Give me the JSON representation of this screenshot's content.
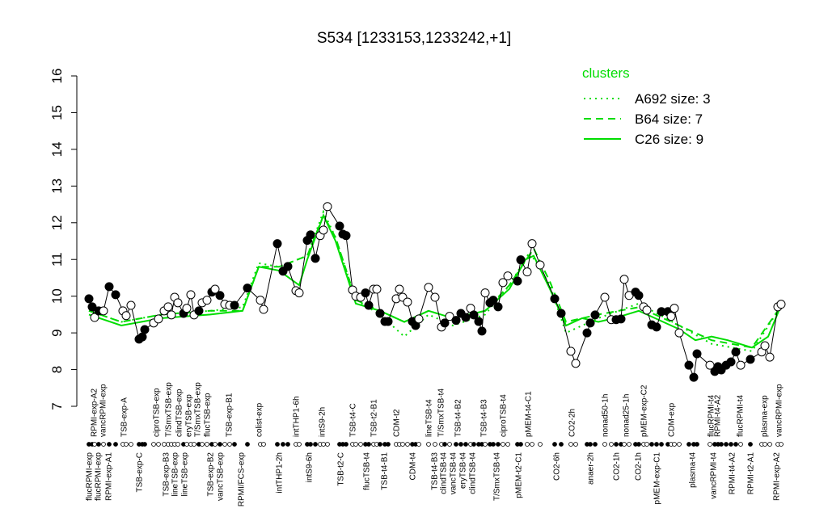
{
  "chart_data": {
    "type": "line",
    "title": "S534 [1233153,1233242,+1]",
    "ylim": [
      7,
      16
    ],
    "yticks": [
      7,
      8,
      9,
      10,
      11,
      12,
      13,
      14,
      15,
      16
    ],
    "xlim": [
      100,
      975
    ],
    "legend_title": "clusters",
    "legend_position": "top-right",
    "series": [
      {
        "color": "#000000",
        "x": [
          110,
          114,
          117,
          122,
          128,
          135,
          143,
          152,
          156,
          162,
          172,
          176,
          179,
          190,
          196,
          203,
          208,
          212,
          216,
          220,
          227,
          231,
          236,
          240,
          246,
          250,
          256,
          262,
          266,
          272,
          278,
          284,
          290,
          306,
          322,
          326,
          343,
          350,
          356,
          366,
          370,
          380,
          384,
          390,
          396,
          400,
          405,
          420,
          424,
          428,
          436,
          440,
          446,
          452,
          456,
          462,
          466,
          470,
          476,
          480,
          490,
          494,
          498,
          504,
          510,
          514,
          518,
          530,
          538,
          546,
          550,
          556,
          564,
          570,
          576,
          582,
          586,
          592,
          596,
          600,
          606,
          610,
          616,
          622,
          628,
          640,
          644,
          652,
          658,
          668,
          686,
          694,
          706,
          712,
          726,
          730,
          736,
          748,
          756,
          762,
          768,
          772,
          778,
          786,
          790,
          796,
          800,
          806,
          812,
          818,
          826,
          830,
          834,
          840,
          852,
          858,
          862,
          878,
          884,
          888,
          892,
          898,
          904,
          910,
          916,
          928,
          942,
          946,
          952,
          962,
          966
        ],
        "values": [
          9.93,
          9.71,
          9.42,
          9.6,
          9.6,
          10.26,
          10.04,
          9.6,
          9.47,
          9.75,
          8.83,
          8.89,
          9.09,
          9.27,
          9.38,
          9.6,
          9.71,
          9.49,
          9.97,
          9.82,
          9.53,
          9.67,
          10.04,
          9.49,
          9.6,
          9.82,
          9.89,
          10.11,
          10.19,
          10.02,
          9.78,
          9.75,
          9.75,
          10.22,
          9.89,
          9.64,
          11.43,
          10.68,
          10.81,
          10.15,
          10.09,
          11.52,
          11.67,
          11.03,
          11.65,
          11.8,
          12.44,
          11.91,
          11.69,
          11.65,
          10.17,
          10.0,
          9.97,
          10.09,
          9.75,
          10.19,
          10.19,
          9.53,
          9.31,
          9.31,
          9.93,
          10.19,
          9.97,
          9.84,
          9.31,
          9.2,
          9.38,
          10.24,
          9.97,
          9.16,
          9.27,
          9.45,
          9.34,
          9.53,
          9.42,
          9.67,
          9.49,
          9.31,
          9.05,
          10.09,
          9.82,
          9.89,
          9.71,
          10.37,
          10.55,
          10.41,
          10.99,
          10.66,
          11.43,
          10.85,
          9.93,
          9.53,
          8.5,
          8.17,
          9.0,
          9.27,
          9.49,
          9.97,
          9.36,
          9.36,
          9.38,
          10.46,
          10.02,
          10.11,
          10.02,
          9.71,
          9.62,
          9.22,
          9.16,
          9.58,
          9.58,
          9.45,
          9.67,
          9.0,
          8.12,
          7.79,
          8.43,
          8.12,
          7.95,
          8.08,
          7.99,
          8.12,
          8.21,
          8.48,
          8.12,
          8.28,
          8.48,
          8.65,
          8.34,
          9.71,
          9.78
        ],
        "filled": [
          true,
          true,
          false,
          true,
          false,
          true,
          true,
          false,
          false,
          false,
          true,
          true,
          true,
          false,
          false,
          false,
          false,
          false,
          false,
          false,
          true,
          false,
          false,
          false,
          true,
          false,
          false,
          true,
          false,
          true,
          false,
          false,
          true,
          true,
          false,
          false,
          true,
          true,
          true,
          false,
          false,
          true,
          true,
          true,
          false,
          false,
          false,
          true,
          true,
          true,
          false,
          false,
          false,
          true,
          true,
          false,
          false,
          true,
          true,
          true,
          false,
          false,
          false,
          false,
          true,
          true,
          false,
          false,
          false,
          false,
          true,
          false,
          true,
          true,
          true,
          false,
          true,
          true,
          true,
          false,
          true,
          true,
          true,
          false,
          false,
          true,
          true,
          false,
          false,
          false,
          true,
          true,
          false,
          false,
          true,
          true,
          true,
          false,
          false,
          true,
          true,
          false,
          false,
          true,
          true,
          false,
          false,
          true,
          true,
          true,
          true,
          false,
          false,
          false,
          true,
          true,
          true,
          false,
          true,
          true,
          true,
          true,
          true,
          true,
          false,
          true,
          false,
          false,
          false,
          false,
          false
        ]
      }
    ],
    "clusters": [
      {
        "name": "A692 size: 3",
        "color": "#00dd00",
        "dash": "dotted",
        "x": [
          110,
          150,
          200,
          260,
          300,
          320,
          345,
          380,
          400,
          415,
          440,
          470,
          500,
          530,
          560,
          600,
          630,
          655,
          680,
          700,
          740,
          790,
          840,
          880,
          930,
          965
        ],
        "values": [
          9.6,
          9.3,
          9.5,
          9.6,
          9.7,
          10.9,
          10.8,
          11.1,
          12.3,
          11.6,
          9.9,
          9.5,
          8.9,
          9.5,
          9.2,
          9.5,
          10.3,
          11.2,
          10.3,
          9.0,
          9.4,
          9.8,
          9.2,
          8.7,
          8.5,
          9.7
        ]
      },
      {
        "name": "B64 size: 7",
        "color": "#00dd00",
        "dash": "dashed",
        "x": [
          110,
          150,
          200,
          260,
          300,
          320,
          345,
          380,
          400,
          415,
          440,
          470,
          500,
          530,
          560,
          600,
          630,
          660,
          680,
          700,
          740,
          790,
          840,
          880,
          930,
          965
        ],
        "values": [
          9.6,
          9.3,
          9.5,
          9.6,
          9.6,
          10.8,
          10.8,
          11.1,
          12.2,
          11.6,
          9.9,
          9.6,
          9.3,
          9.6,
          9.4,
          9.6,
          10.3,
          11.3,
          10.4,
          9.3,
          9.5,
          9.7,
          9.2,
          8.8,
          8.6,
          9.7
        ]
      },
      {
        "name": "C26 size: 9",
        "color": "#00dd00",
        "dash": "solid",
        "x": [
          110,
          150,
          200,
          260,
          300,
          320,
          345,
          370,
          380,
          400,
          415,
          440,
          470,
          500,
          530,
          560,
          600,
          630,
          650,
          660,
          680,
          700,
          720,
          740,
          760,
          790,
          810,
          840,
          860,
          880,
          900,
          930,
          950,
          965
        ],
        "values": [
          9.5,
          9.2,
          9.4,
          9.5,
          9.6,
          10.8,
          10.7,
          10.3,
          11.0,
          12.2,
          11.5,
          9.8,
          9.6,
          9.3,
          9.6,
          9.4,
          9.6,
          10.2,
          11.0,
          11.1,
          10.2,
          9.2,
          9.4,
          9.3,
          9.4,
          9.6,
          9.4,
          9.1,
          8.8,
          8.9,
          8.8,
          8.6,
          8.9,
          9.7
        ]
      }
    ],
    "x_labels_top": {
      "text": [
        "RPMI-exp-A2",
        "vancRPMI-exp",
        "TSB-exp-A",
        "ciproTSB-exp",
        "T/SmxTSB-exp",
        "clindTSB-exp",
        "eryTSB-exp",
        "T/SmxTSB-exp",
        "flucTSB-exp",
        "TSB-exp-B1",
        "colist-exp",
        "intTHP1-6h",
        "intS9-2h",
        "TSB-t4-C",
        "TSB-t2-B1",
        "CDM-t2",
        "lineTSB-t4",
        "T/SmxTSB-t4",
        "TSB-t4-B2",
        "TSB-t4-B3",
        "ciproTSB-t4",
        "pMEM-t4-C1",
        "CO2-2h",
        "nonad50-1h",
        "nonad25-1h",
        "pMEM-exp-C2",
        "CDM-exp",
        "flucRPMI-t4",
        "RPMI-t4-A2",
        "flucRPMI-t4",
        "plasma-exp",
        "vancRPMI-exp"
      ],
      "x": [
        116,
        127,
        153,
        193,
        208,
        221,
        233,
        244,
        256,
        283,
        320,
        366,
        398,
        436,
        462,
        490,
        530,
        545,
        566,
        598,
        622,
        653,
        707,
        748,
        774,
        796,
        830,
        879,
        887,
        915,
        945,
        963
      ]
    },
    "x_labels_bottom": {
      "text": [
        "flucRPMI-exp",
        "flucRPMI-exp",
        "RPMI-exp-A1",
        "TSB-exp-C",
        "TSB-exp-B3",
        "lineTSB-exp",
        "lineTSB-exp",
        "TSB-exp-B2",
        "vancTSB-exp",
        "RPMI/FCS-exp",
        "intTHP1-2h",
        "intS9-6h",
        "TSB-t2-C",
        "flucTSB-t4",
        "TSB-t4-B1",
        "CDM-t4",
        "TSB-t4-B3",
        "clindTSB-t4",
        "vancTSB-t4",
        "eryTSB-t4",
        "clindTSB-t4",
        "T/SmxTSB-t4",
        "pMEM-t2-C1",
        "CO2-6h",
        "anaer-2h",
        "CO2-1h",
        "CO2-1h",
        "pMEM-exp-C1",
        "plasma-t4",
        "vancRPMI-t4",
        "RPMI-t4-A2",
        "RPMI-t2-A1",
        "RPMI-exp-A2"
      ],
      "x": [
        110,
        121,
        134,
        172,
        205,
        216,
        228,
        260,
        272,
        298,
        345,
        382,
        421,
        453,
        475,
        510,
        537,
        548,
        560,
        572,
        584,
        614,
        641,
        688,
        730,
        762,
        789,
        812,
        856,
        882,
        905,
        928,
        960
      ]
    }
  }
}
